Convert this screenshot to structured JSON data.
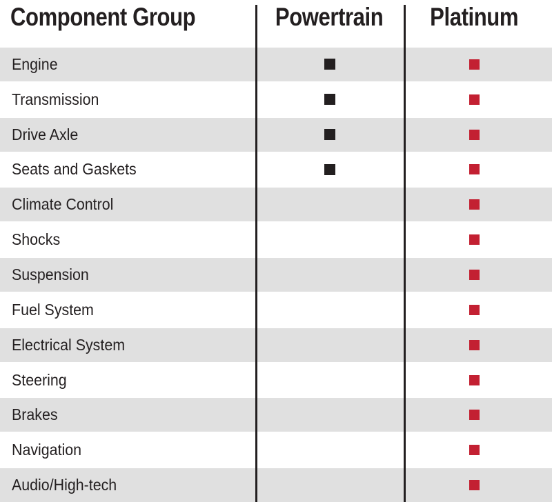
{
  "header": {
    "component_group": "Component Group",
    "powertrain": "Powertrain",
    "platinum": "Platinum"
  },
  "colors": {
    "text": "#231f20",
    "divider": "#231f20",
    "row_stripe": "#e0e0e0",
    "powertrain_marker": "#231f20",
    "platinum_marker": "#c32032"
  },
  "markers": {
    "powertrain": "black-filled-square",
    "platinum": "red-filled-square"
  },
  "rows": [
    {
      "label": "Engine",
      "powertrain": true,
      "platinum": true
    },
    {
      "label": "Transmission",
      "powertrain": true,
      "platinum": true
    },
    {
      "label": "Drive Axle",
      "powertrain": true,
      "platinum": true
    },
    {
      "label": "Seats and Gaskets",
      "powertrain": true,
      "platinum": true
    },
    {
      "label": "Climate Control",
      "powertrain": false,
      "platinum": true
    },
    {
      "label": "Shocks",
      "powertrain": false,
      "platinum": true
    },
    {
      "label": "Suspension",
      "powertrain": false,
      "platinum": true
    },
    {
      "label": "Fuel System",
      "powertrain": false,
      "platinum": true
    },
    {
      "label": "Electrical System",
      "powertrain": false,
      "platinum": true
    },
    {
      "label": "Steering",
      "powertrain": false,
      "platinum": true
    },
    {
      "label": "Brakes",
      "powertrain": false,
      "platinum": true
    },
    {
      "label": "Navigation",
      "powertrain": false,
      "platinum": true
    },
    {
      "label": "Audio/High-tech",
      "powertrain": false,
      "platinum": true
    }
  ],
  "chart_data": {
    "type": "table",
    "title": "",
    "columns": [
      "Component Group",
      "Powertrain",
      "Platinum"
    ],
    "categories": [
      "Engine",
      "Transmission",
      "Drive Axle",
      "Seats and Gaskets",
      "Climate Control",
      "Shocks",
      "Suspension",
      "Fuel System",
      "Electrical System",
      "Steering",
      "Brakes",
      "Navigation",
      "Audio/High-tech"
    ],
    "series": [
      {
        "name": "Powertrain",
        "values": [
          1,
          1,
          1,
          1,
          0,
          0,
          0,
          0,
          0,
          0,
          0,
          0,
          0
        ]
      },
      {
        "name": "Platinum",
        "values": [
          1,
          1,
          1,
          1,
          1,
          1,
          1,
          1,
          1,
          1,
          1,
          1,
          1
        ]
      }
    ],
    "marker": "filled-square",
    "legend_position": "none",
    "grid": "off",
    "layout": "striped-rows-with-vertical-dividers"
  }
}
